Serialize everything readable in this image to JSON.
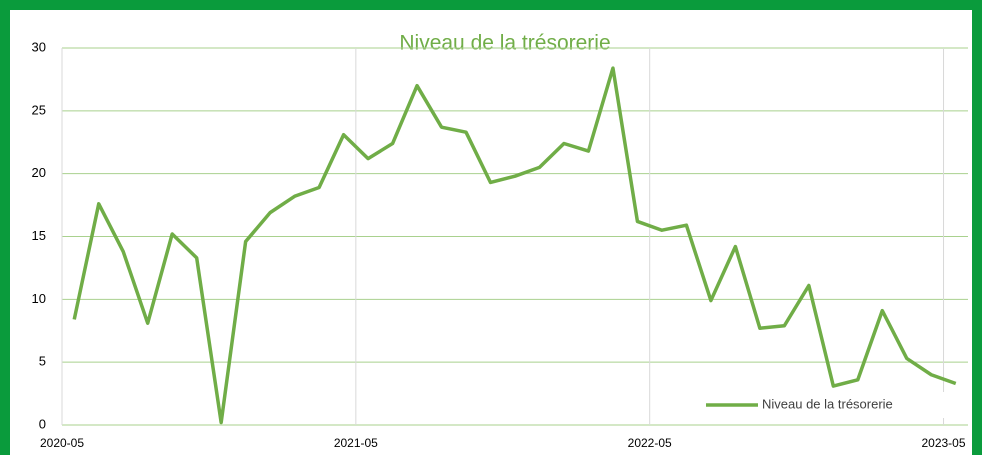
{
  "chart_data": {
    "type": "line",
    "title": "Niveau de la trésorerie",
    "categories": [
      "2020-05",
      null,
      null,
      null,
      null,
      null,
      null,
      null,
      null,
      null,
      null,
      null,
      "2021-05",
      null,
      null,
      null,
      null,
      null,
      null,
      null,
      null,
      null,
      null,
      null,
      "2022-05",
      null,
      null,
      null,
      null,
      null,
      null,
      null,
      null,
      null,
      null,
      null,
      "2023-05"
    ],
    "series": [
      {
        "name": "Niveau de la trésorerie",
        "color": "#70ad47",
        "values": [
          8.4,
          17.6,
          13.8,
          8.1,
          15.2,
          13.3,
          0.2,
          14.6,
          16.9,
          18.2,
          18.9,
          23.1,
          21.2,
          22.4,
          27.0,
          23.7,
          23.3,
          19.3,
          19.8,
          20.5,
          22.4,
          21.8,
          28.4,
          16.2,
          15.5,
          15.9,
          9.9,
          14.2,
          7.7,
          7.9,
          11.1,
          3.1,
          3.6,
          9.1,
          5.3,
          4.0,
          3.3
        ]
      }
    ],
    "ylim": [
      0,
      30
    ],
    "yticks": [
      0,
      5,
      10,
      15,
      20,
      25,
      30
    ],
    "grid": true,
    "legend": "bottom-right"
  }
}
